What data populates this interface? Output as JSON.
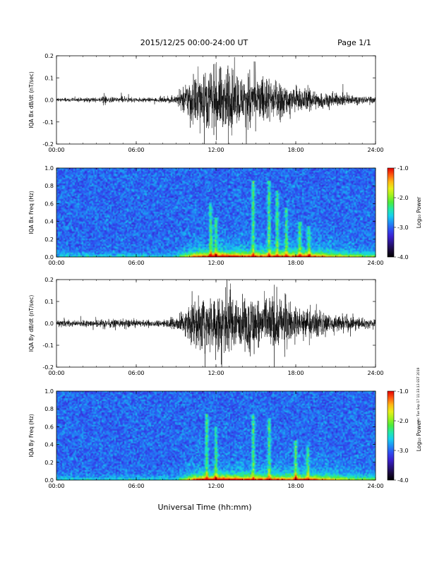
{
  "header": {
    "title": "2015/12/25  00:00-24:00 UT",
    "page": "Page 1/1"
  },
  "x_axis_label": "Universal Time (hh:mm)",
  "side_note": "rev: Tue Sep 17 11:33:13 EST 2019",
  "colorbar": {
    "label": "Log₁₀ Power",
    "ticks": [
      "-1.0",
      "-2.0",
      "-3.0",
      "-4.0"
    ],
    "range": [
      -4.0,
      -1.0
    ],
    "colors": [
      "#000000",
      "#1a0a3a",
      "#2a1585",
      "#3a22d0",
      "#2f4df0",
      "#1f8ef5",
      "#16cfee",
      "#22e8a8",
      "#4cec3c",
      "#9ef21e",
      "#e6f019",
      "#ffb814",
      "#ff5a10",
      "#e60000"
    ]
  },
  "chart_data": [
    {
      "type": "line",
      "id": "bx-waveform",
      "ylabel": "IQA Bx dB/dt (nT/sec)",
      "x_ticks": [
        "00:00",
        "06:00",
        "12:00",
        "18:00",
        "24:00"
      ],
      "y_ticks": [
        "-0.2",
        "-0.1",
        "0.0",
        "0.1",
        "0.2"
      ],
      "xlim": [
        0,
        24
      ],
      "ylim": [
        -0.2,
        0.2
      ],
      "amplitude_envelope": {
        "hours": [
          0,
          1,
          2,
          3,
          4,
          5,
          6,
          7,
          8,
          9,
          9.5,
          10,
          11,
          12,
          12.5,
          13,
          14,
          14.7,
          15,
          15.5,
          16,
          17,
          18,
          19,
          20,
          21,
          22,
          23,
          24
        ],
        "amplitude": [
          0.012,
          0.012,
          0.013,
          0.014,
          0.016,
          0.015,
          0.014,
          0.013,
          0.014,
          0.025,
          0.07,
          0.14,
          0.17,
          0.19,
          0.2,
          0.2,
          0.14,
          0.2,
          0.12,
          0.15,
          0.14,
          0.1,
          0.08,
          0.07,
          0.05,
          0.04,
          0.035,
          0.025,
          0.02
        ]
      },
      "bursts": [
        {
          "hour": 3.6,
          "amplitude": 0.05
        },
        {
          "hour": 4.9,
          "amplitude": 0.04
        }
      ]
    },
    {
      "type": "heatmap",
      "id": "bx-spectrogram",
      "ylabel": "IQA Bx Freq (Hz)",
      "x_ticks": [
        "00:00",
        "06:00",
        "12:00",
        "18:00",
        "24:00"
      ],
      "y_ticks": [
        "0.0",
        "0.2",
        "0.4",
        "0.6",
        "0.8",
        "1.0"
      ],
      "xlim": [
        0,
        24
      ],
      "ylim": [
        0.0,
        1.0
      ],
      "colorbar_range": [
        -4.0,
        -1.0
      ],
      "streaks": [
        {
          "hour": 14.8,
          "top_freq": 0.85
        },
        {
          "hour": 16.0,
          "top_freq": 0.85
        },
        {
          "hour": 16.6,
          "top_freq": 0.75
        },
        {
          "hour": 17.3,
          "top_freq": 0.55
        },
        {
          "hour": 18.3,
          "top_freq": 0.4
        },
        {
          "hour": 19.0,
          "top_freq": 0.35
        },
        {
          "hour": 11.6,
          "top_freq": 0.6
        },
        {
          "hour": 12.0,
          "top_freq": 0.45
        }
      ]
    },
    {
      "type": "line",
      "id": "by-waveform",
      "ylabel": "IQA By dB/dt (nT/sec)",
      "x_ticks": [
        "00:00",
        "06:00",
        "12:00",
        "18:00",
        "24:00"
      ],
      "y_ticks": [
        "-0.2",
        "-0.1",
        "0.0",
        "0.1",
        "0.2"
      ],
      "xlim": [
        0,
        24
      ],
      "ylim": [
        -0.2,
        0.2
      ],
      "amplitude_envelope": {
        "hours": [
          0,
          1,
          2,
          3,
          4,
          5,
          6,
          7,
          8,
          9,
          9.5,
          10,
          11,
          12,
          12.5,
          13,
          14,
          14.7,
          15,
          15.5,
          16,
          17,
          18,
          19,
          20,
          21,
          22,
          23,
          24
        ],
        "amplitude": [
          0.02,
          0.02,
          0.02,
          0.022,
          0.025,
          0.024,
          0.022,
          0.02,
          0.02,
          0.04,
          0.08,
          0.14,
          0.16,
          0.2,
          0.2,
          0.17,
          0.15,
          0.2,
          0.14,
          0.13,
          0.19,
          0.14,
          0.11,
          0.1,
          0.08,
          0.05,
          0.045,
          0.035,
          0.025
        ]
      },
      "bursts": [
        {
          "hour": 3.6,
          "amplitude": 0.05
        }
      ]
    },
    {
      "type": "heatmap",
      "id": "by-spectrogram",
      "ylabel": "IQA By Freq (Hz)",
      "x_ticks": [
        "00:00",
        "06:00",
        "12:00",
        "18:00",
        "24:00"
      ],
      "y_ticks": [
        "0.0",
        "0.2",
        "0.4",
        "0.6",
        "0.8",
        "1.0"
      ],
      "xlim": [
        0,
        24
      ],
      "ylim": [
        0.0,
        1.0
      ],
      "colorbar_range": [
        -4.0,
        -1.0
      ],
      "streaks": [
        {
          "hour": 11.3,
          "top_freq": 0.75
        },
        {
          "hour": 12.0,
          "top_freq": 0.6
        },
        {
          "hour": 14.8,
          "top_freq": 0.75
        },
        {
          "hour": 16.0,
          "top_freq": 0.7
        },
        {
          "hour": 18.0,
          "top_freq": 0.45
        },
        {
          "hour": 18.9,
          "top_freq": 0.4
        }
      ]
    }
  ]
}
